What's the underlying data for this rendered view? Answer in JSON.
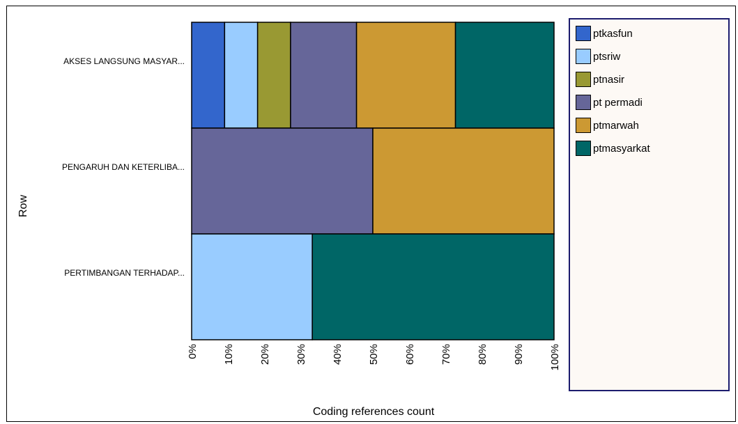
{
  "chart_data": {
    "type": "bar",
    "orientation": "horizontal",
    "stacked": "percent",
    "xlabel": "Coding references count",
    "ylabel": "Row",
    "xlim": [
      0,
      100
    ],
    "xticks": [
      "0%",
      "10%",
      "20%",
      "30%",
      "40%",
      "50%",
      "60%",
      "70%",
      "80%",
      "90%",
      "100%"
    ],
    "categories": [
      "AKSES LANGSUNG MASYAR...",
      "PENGARUH DAN KETERLIBA...",
      "PERTIMBANGAN TERHADAP..."
    ],
    "series": [
      {
        "name": "ptkasfun",
        "color": "#3366cc",
        "values": [
          9.1,
          0,
          0
        ]
      },
      {
        "name": "ptsriw",
        "color": "#99ccff",
        "values": [
          9.1,
          0,
          33.3
        ]
      },
      {
        "name": "ptnasir",
        "color": "#999933",
        "values": [
          9.1,
          0,
          0
        ]
      },
      {
        "name": "pt permadi",
        "color": "#666699",
        "values": [
          18.2,
          50,
          0
        ]
      },
      {
        "name": "ptmarwah",
        "color": "#cc9933",
        "values": [
          27.3,
          50,
          0
        ]
      },
      {
        "name": "ptmasyarkat",
        "color": "#006666",
        "values": [
          27.2,
          0,
          66.7
        ]
      }
    ],
    "grid": false,
    "legend_position": "right"
  }
}
